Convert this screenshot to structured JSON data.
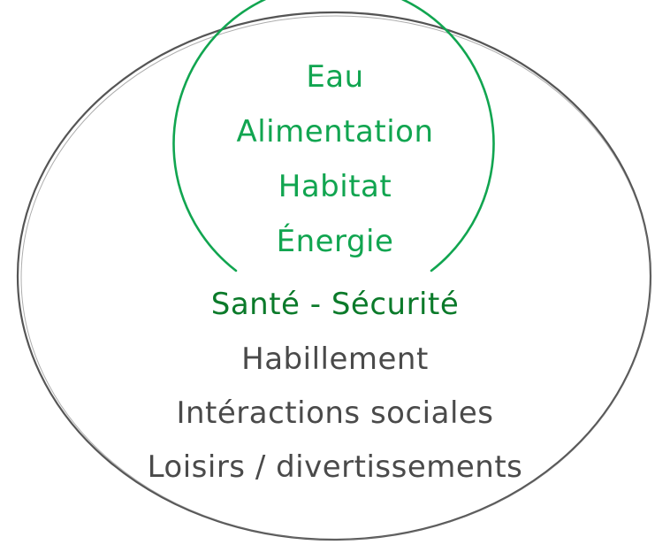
{
  "colors": {
    "inner_text": "#11a550",
    "inner_circle": "#11a550",
    "middle_text": "#0b7a2a",
    "outer_text": "#4a4a4a",
    "outer_ellipse": "#555555"
  },
  "inner_circle": {
    "items": [
      "Eau",
      "Alimentation",
      "Habitat",
      "Énergie"
    ]
  },
  "middle": {
    "item": "Santé - Sécurité"
  },
  "outer_ellipse": {
    "items": [
      "Habillement",
      "Intéractions sociales",
      "Loisirs / divertissements"
    ]
  }
}
